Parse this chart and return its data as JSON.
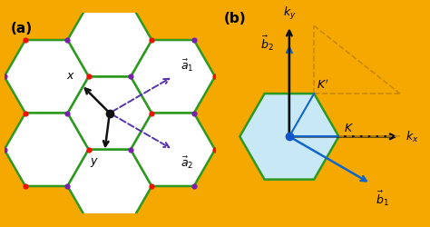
{
  "bg_color": "#F5A800",
  "hex_edge_color": "#2E9920",
  "hex_fill_color": "#FFFFFF",
  "hex_edge_width": 1.8,
  "red_dot_color": "#EE1100",
  "purple_dot_color": "#7722AA",
  "blue_dot_color": "#1155CC",
  "black_dot_color": "#111111",
  "arrow_color_black": "#111111",
  "arrow_color_purple": "#5533AA",
  "arrow_color_blue": "#1166CC",
  "dashed_color": "#CC8800",
  "bz_fill_color": "#C8E8F5",
  "panel_a_label": "(a)",
  "panel_b_label": "(b)",
  "label_fontsize": 11,
  "annotation_fontsize": 9
}
